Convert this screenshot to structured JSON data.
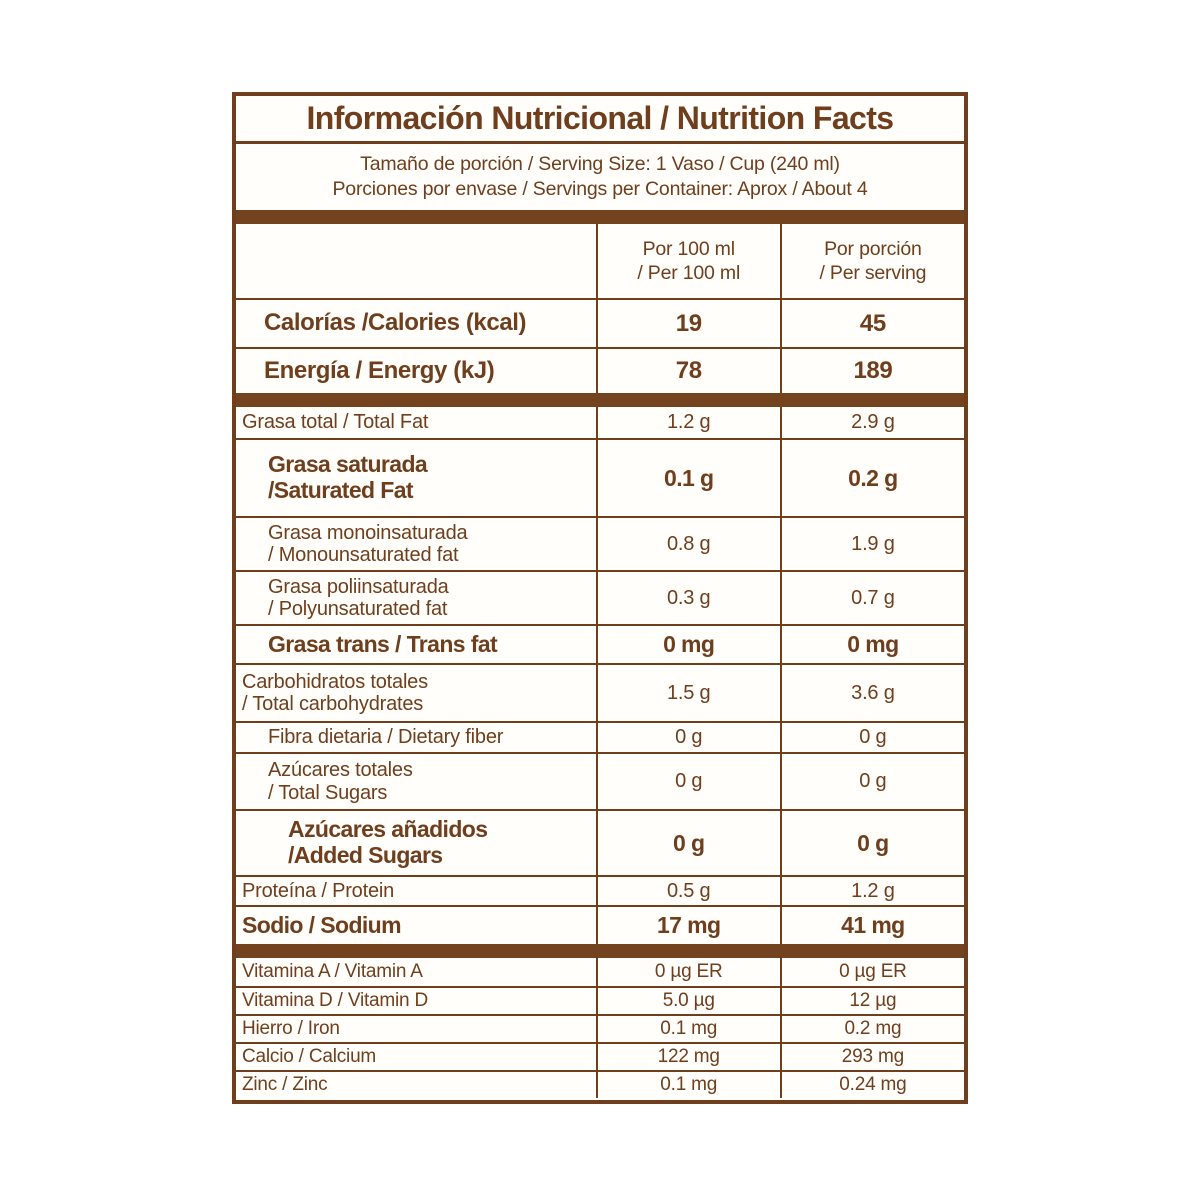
{
  "colors": {
    "brown": "#6f3e1d",
    "bar": "#73431f",
    "background": "#fffefb"
  },
  "header": {
    "title": "Información Nutricional / Nutrition Facts",
    "serving_size": "Tamaño de porción / Serving Size: 1 Vaso / Cup (240 ml)",
    "servings_per_container": "Porciones por envase / Servings per Container: Aprox / About 4"
  },
  "columns": {
    "per_100ml_line1": "Por 100 ml",
    "per_100ml_line2": "/ Per 100 ml",
    "per_serving_line1": "Por porción",
    "per_serving_line2": "/ Per serving"
  },
  "rows": [
    {
      "l1": "Calorías /Calories (kcal)",
      "v1": "19",
      "v2": "45"
    },
    {
      "l1": "Energía / Energy (kJ)",
      "v1": "78",
      "v2": "189"
    },
    {
      "l1": "Grasa total / Total Fat",
      "v1": "1.2 g",
      "v2": "2.9 g"
    },
    {
      "l1": "Grasa saturada",
      "l2": "/Saturated Fat",
      "v1": "0.1 g",
      "v2": "0.2 g"
    },
    {
      "l1": "Grasa monoinsaturada",
      "l2": "/ Monounsaturated fat",
      "v1": "0.8 g",
      "v2": "1.9 g"
    },
    {
      "l1": "Grasa poliinsaturada",
      "l2": "/ Polyunsaturated fat",
      "v1": "0.3 g",
      "v2": "0.7 g"
    },
    {
      "l1": "Grasa trans / Trans fat",
      "v1": "0 mg",
      "v2": "0 mg"
    },
    {
      "l1": "Carbohidratos totales",
      "l2": "/ Total carbohydrates",
      "v1": "1.5 g",
      "v2": "3.6 g"
    },
    {
      "l1": "Fibra dietaria / Dietary fiber",
      "v1": "0 g",
      "v2": "0 g"
    },
    {
      "l1": "Azúcares totales",
      "l2": "/ Total Sugars",
      "v1": "0 g",
      "v2": "0 g"
    },
    {
      "l1": "Azúcares añadidos",
      "l2": "/Added Sugars",
      "v1": "0 g",
      "v2": "0 g"
    },
    {
      "l1": "Proteína / Protein",
      "v1": "0.5 g",
      "v2": "1.2 g"
    },
    {
      "l1": "Sodio / Sodium",
      "v1": "17 mg",
      "v2": "41 mg"
    },
    {
      "l1": "Vitamina A / Vitamin A",
      "v1": "0 µg ER",
      "v2": "0 µg ER"
    },
    {
      "l1": "Vitamina D / Vitamin D",
      "v1": "5.0 µg",
      "v2": "12 µg"
    },
    {
      "l1": "Hierro / Iron",
      "v1": "0.1 mg",
      "v2": "0.2 mg"
    },
    {
      "l1": "Calcio / Calcium",
      "v1": "122 mg",
      "v2": "293 mg"
    },
    {
      "l1": "Zinc / Zinc",
      "v1": "0.1 mg",
      "v2": "0.24 mg"
    }
  ]
}
